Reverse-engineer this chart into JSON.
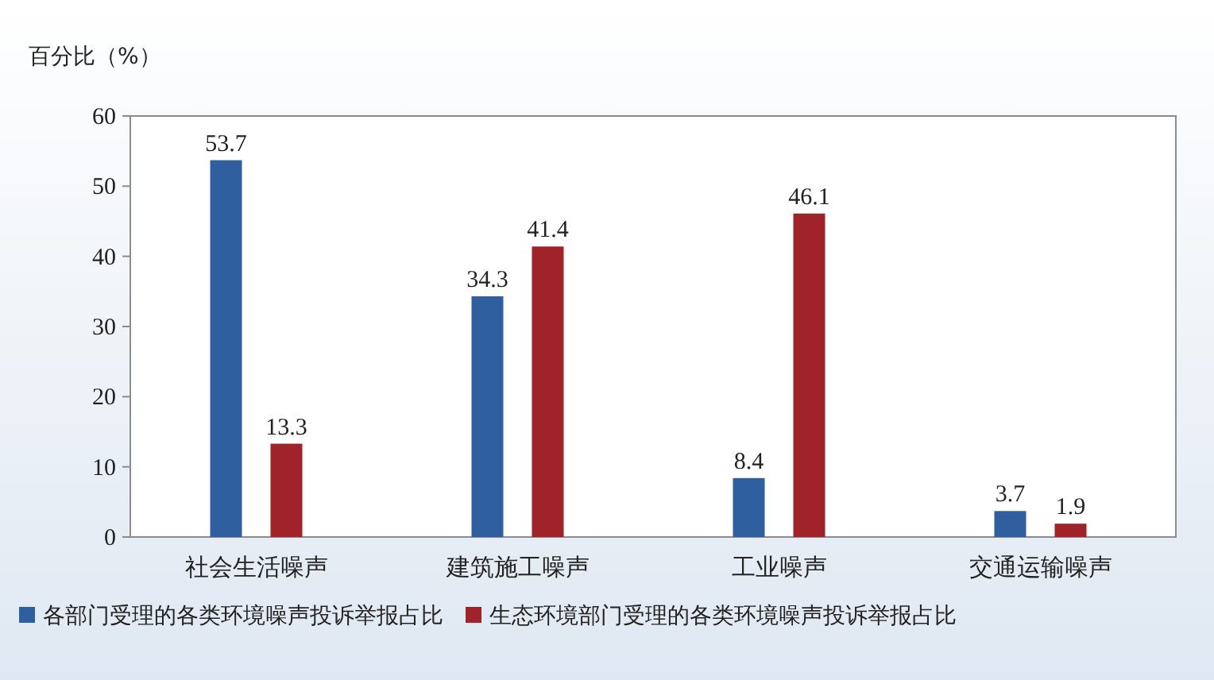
{
  "chart_data": {
    "type": "bar",
    "ylabel": "百分比（%）",
    "categories": [
      "社会生活噪声",
      "建筑施工噪声",
      "工业噪声",
      "交通运输噪声"
    ],
    "series": [
      {
        "name": "各部门受理的各类环境噪声投诉举报占比",
        "color": "#2f5f9f",
        "values": [
          53.7,
          34.3,
          8.4,
          3.7
        ]
      },
      {
        "name": "生态环境部门受理的各类环境噪声投诉举报占比",
        "color": "#a0232a",
        "values": [
          13.3,
          41.4,
          46.1,
          1.9
        ]
      }
    ],
    "ylim": [
      0,
      60
    ],
    "yticks": [
      0,
      10,
      20,
      30,
      40,
      50,
      60
    ],
    "data_labels": true,
    "legend": "bottom"
  }
}
